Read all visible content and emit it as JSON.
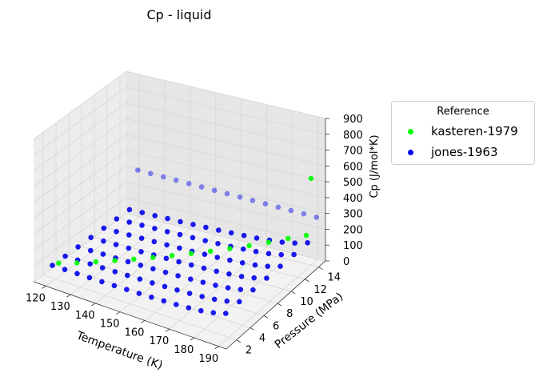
{
  "chart_data": {
    "type": "scatter",
    "projection": "3d",
    "title": "Cp - liquid",
    "xlabel": "Temperature (K)",
    "ylabel": "Pressure (MPa)",
    "zlabel": "Cp (J/mol*K)",
    "xticks": [
      120,
      130,
      140,
      150,
      160,
      170,
      180,
      190
    ],
    "yticks": [
      2,
      4,
      6,
      8,
      10,
      12,
      14
    ],
    "zticks": [
      0,
      100,
      200,
      300,
      400,
      500,
      600,
      700,
      800,
      900
    ],
    "xlim": [
      115,
      193
    ],
    "ylim": [
      0.5,
      15
    ],
    "zlim": [
      0,
      900
    ],
    "grid": true,
    "legend": {
      "title": "Reference",
      "position": "outside-right"
    },
    "series": [
      {
        "name": "kasteren-1979",
        "color": "#00ff00",
        "points": [
          {
            "x": 121,
            "y": 2.1,
            "z": 102
          },
          {
            "x": 126,
            "y": 3.0,
            "z": 102
          },
          {
            "x": 131,
            "y": 4.0,
            "z": 103
          },
          {
            "x": 136,
            "y": 5.0,
            "z": 104
          },
          {
            "x": 141,
            "y": 6.0,
            "z": 105
          },
          {
            "x": 146,
            "y": 7.0,
            "z": 107
          },
          {
            "x": 151,
            "y": 8.0,
            "z": 109
          },
          {
            "x": 156,
            "y": 9.0,
            "z": 111
          },
          {
            "x": 161,
            "y": 10.0,
            "z": 113
          },
          {
            "x": 166,
            "y": 11.0,
            "z": 116
          },
          {
            "x": 171,
            "y": 12.0,
            "z": 120
          },
          {
            "x": 176,
            "y": 13.0,
            "z": 125
          },
          {
            "x": 181,
            "y": 14.0,
            "z": 133
          },
          {
            "x": 186,
            "y": 14.8,
            "z": 142
          },
          {
            "x": 190,
            "y": 14.0,
            "z": 548
          }
        ]
      },
      {
        "name": "jones-1963",
        "color": "#0000ee",
        "T": [
          120,
          125,
          130,
          135,
          140,
          145,
          150,
          155,
          160,
          165,
          170,
          175,
          180,
          185,
          190
        ],
        "P": [
          1.5,
          3.5,
          5.5,
          7.5,
          9.5,
          11.5,
          13.5
        ],
        "cp_at_P_min": [
          100,
          101,
          102,
          103,
          104,
          106,
          108,
          110,
          113,
          116,
          120,
          126,
          134,
          148,
          170
        ],
        "cp_change_per_MPa": -0.8,
        "isobar_high": {
          "x": [
            120,
            125,
            130,
            135,
            140,
            145,
            150,
            155,
            160,
            165,
            170,
            175,
            180,
            185,
            190
          ],
          "y": 14.8,
          "z": [
            300,
            298,
            296,
            294,
            292,
            290,
            288,
            286,
            284,
            282,
            280,
            278,
            276,
            274,
            272
          ]
        }
      }
    ]
  }
}
